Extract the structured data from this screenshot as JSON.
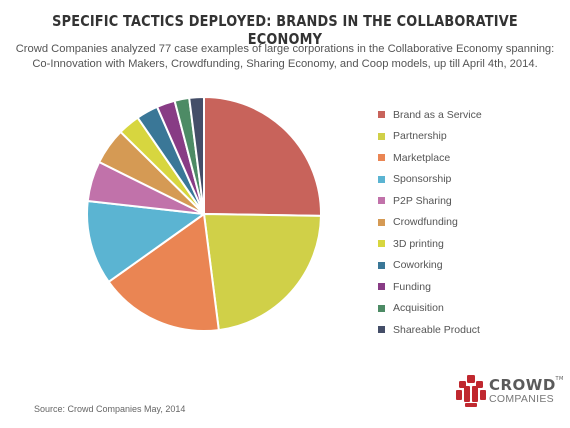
{
  "title": "SPECIFIC TACTICS DEPLOYED: BRANDS IN THE COLLABORATIVE ECONOMY",
  "subtitle_line1": "Crowd Companies analyzed 77 case examples of large corporations in the Collaborative Economy spanning:",
  "subtitle_line2": "Co-Innovation with Makers, Crowdfunding, Sharing Economy, and Coop models, up till April 4th, 2014.",
  "source": "Source: Crowd Companies May, 2014",
  "logo": {
    "name": "CROWD",
    "tm": "TM",
    "sub": "COMPANIES",
    "color_red": "#c0282f"
  },
  "chart_data": {
    "type": "pie",
    "title": "SPECIFIC TACTICS DEPLOYED: BRANDS IN THE COLLABORATIVE ECONOMY",
    "start_angle_deg": 0,
    "direction": "clockwise",
    "legend_position": "right",
    "categories": [
      "Brand as a Service",
      "Partnership",
      "Marketplace",
      "Sponsorship",
      "P2P Sharing",
      "Crowdfunding",
      "3D printing",
      "Coworking",
      "Funding",
      "Acquisition",
      "Shareable Product"
    ],
    "values": [
      25.0,
      22.5,
      17.0,
      11.5,
      5.5,
      5.0,
      3.0,
      3.0,
      2.5,
      2.0,
      2.0
    ],
    "colors": [
      "#c8635b",
      "#d0d048",
      "#ea8553",
      "#5bb4d2",
      "#c172aa",
      "#d59a54",
      "#d7d63f",
      "#3a7797",
      "#883c85",
      "#4d8b65",
      "#444e68"
    ]
  }
}
